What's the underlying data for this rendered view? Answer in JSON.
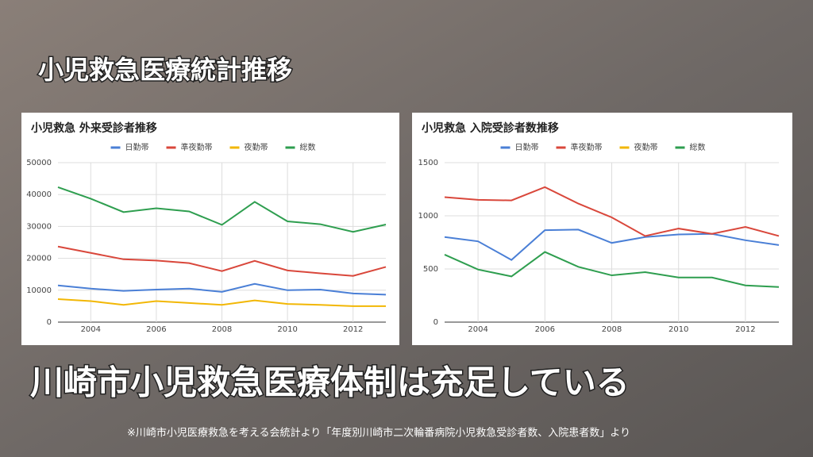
{
  "header": {
    "title": "小児救急医療統計推移"
  },
  "chart_data": [
    {
      "type": "line",
      "title": "小児救急 外来受診者推移",
      "x": [
        2003,
        2004,
        2005,
        2006,
        2007,
        2008,
        2009,
        2010,
        2011,
        2012,
        2013
      ],
      "xlim": [
        2003,
        2013
      ],
      "xticks": [
        2004,
        2006,
        2008,
        2010,
        2012
      ],
      "ylim": [
        0,
        50000
      ],
      "yticks": [
        0,
        10000,
        20000,
        30000,
        40000,
        50000
      ],
      "grid": true,
      "legend": "top",
      "series": [
        {
          "name": "日勤帯",
          "color": "#4a7fd6",
          "values": [
            11500,
            10500,
            9800,
            10200,
            10500,
            9500,
            12000,
            10000,
            10200,
            9000,
            8600
          ]
        },
        {
          "name": "準夜勤帯",
          "color": "#d9473b",
          "values": [
            23700,
            21700,
            19700,
            19300,
            18500,
            16000,
            19200,
            16200,
            15300,
            14500,
            17300
          ]
        },
        {
          "name": "夜勤帯",
          "color": "#f2b705",
          "values": [
            7200,
            6600,
            5400,
            6600,
            6000,
            5400,
            6800,
            5700,
            5400,
            5000,
            5000
          ]
        },
        {
          "name": "総数",
          "color": "#2e9e4f",
          "values": [
            42300,
            38700,
            34500,
            35700,
            34700,
            30500,
            37700,
            31600,
            30700,
            28300,
            30600
          ]
        }
      ]
    },
    {
      "type": "line",
      "title": "小児救急 入院受診者数推移",
      "x": [
        2003,
        2004,
        2005,
        2006,
        2007,
        2008,
        2009,
        2010,
        2011,
        2012,
        2013
      ],
      "xlim": [
        2003,
        2013
      ],
      "xticks": [
        2004,
        2006,
        2008,
        2010,
        2012
      ],
      "ylim": [
        0,
        1500
      ],
      "yticks": [
        0,
        500,
        1000,
        1500
      ],
      "grid": true,
      "legend": "top",
      "series": [
        {
          "name": "日勤帯",
          "color": "#4a7fd6",
          "values": [
            800,
            760,
            585,
            865,
            870,
            745,
            800,
            825,
            830,
            770,
            725
          ]
        },
        {
          "name": "準夜勤帯",
          "color": "#d9473b",
          "values": [
            1175,
            1150,
            1145,
            1270,
            1115,
            985,
            810,
            880,
            830,
            895,
            810
          ]
        },
        {
          "name": "夜勤帯",
          "color": "#f2b705",
          "values": [
            null,
            null,
            null,
            null,
            null,
            null,
            null,
            null,
            null,
            null,
            null
          ]
        },
        {
          "name": "総数",
          "color": "#2e9e4f",
          "values": [
            635,
            495,
            430,
            660,
            520,
            440,
            470,
            420,
            420,
            345,
            330
          ]
        }
      ]
    }
  ],
  "statement": "川崎市小児救急医療体制は充足している",
  "footnote": "※川崎市小児医療救急を考える会統計より「年度別川崎市二次輪番病院小児救急受診者数、入院患者数」より"
}
